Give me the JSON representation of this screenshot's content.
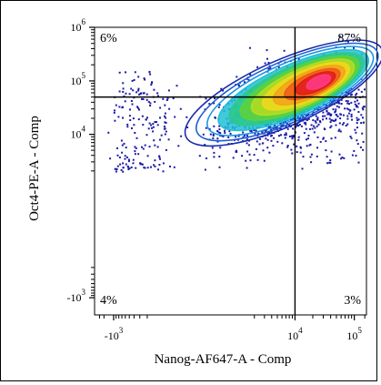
{
  "chart_data": {
    "type": "scatter",
    "subtype": "flow-cytometry-contour-density",
    "title": "",
    "xlabel": "Nanog-AF647-A - Comp",
    "ylabel": "Oct4-PE-A - Comp",
    "x_scale": "biexponential",
    "y_scale": "biexponential",
    "x_ticks": [
      {
        "base": "-10",
        "exp": "3",
        "value": -1000
      },
      {
        "base": "10",
        "exp": "4",
        "value": 10000
      },
      {
        "base": "10",
        "exp": "5",
        "value": 100000
      }
    ],
    "y_ticks": [
      {
        "base": "-10",
        "exp": "3",
        "value": -1000
      },
      {
        "base": "10",
        "exp": "4",
        "value": 10000
      },
      {
        "base": "10",
        "exp": "5",
        "value": 100000
      },
      {
        "base": "10",
        "exp": "6",
        "value": 1000000
      }
    ],
    "quadrant_gate": {
      "x": 10000,
      "y": 50000
    },
    "quadrants": [
      {
        "position": "top-left",
        "label": "6%",
        "value": 6
      },
      {
        "position": "top-right",
        "label": "87%",
        "value": 87
      },
      {
        "position": "bottom-left",
        "label": "4%",
        "value": 4
      },
      {
        "position": "bottom-right",
        "label": "3%",
        "value": 3
      }
    ],
    "population_center": {
      "x": 25000,
      "y": 95000
    },
    "contour_levels": 12,
    "contour_colors": [
      "#1a2bb0",
      "#1f5ed6",
      "#1c95e6",
      "#22c0d6",
      "#2cc98a",
      "#5ed23a",
      "#b5dc22",
      "#f0d81c",
      "#f4a21a",
      "#ee5a18",
      "#e21c1c",
      "#ff3a8a"
    ],
    "dot_color": "#1a1aa8",
    "grid": false,
    "legend": "none"
  }
}
